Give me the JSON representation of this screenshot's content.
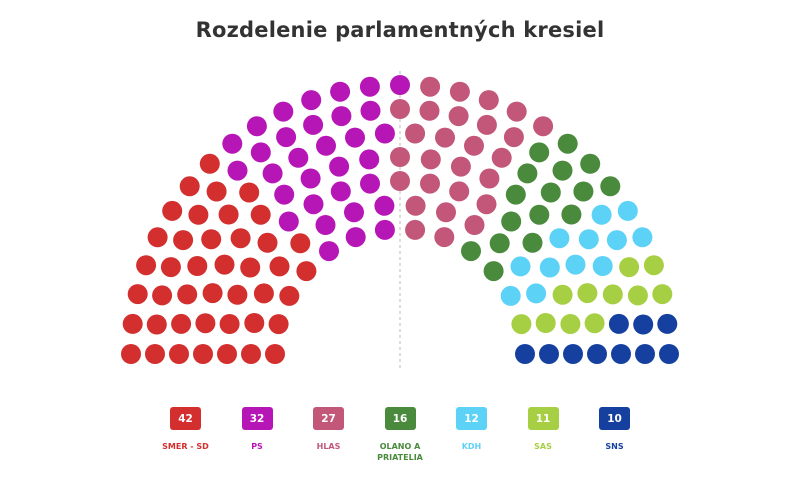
{
  "title": "Rozdelenie parlamentných kresiel",
  "chart_data": {
    "type": "parliament",
    "title": "Rozdelenie parlamentných kresiel",
    "total_seats": 150,
    "parties": [
      {
        "name": "SMER - SD",
        "seats": 42,
        "color": "#d32f2f"
      },
      {
        "name": "PS",
        "seats": 32,
        "color": "#b716b7"
      },
      {
        "name": "HLAS",
        "seats": 27,
        "color": "#c2577a"
      },
      {
        "name": "OLANO A PRIATELIA",
        "seats": 16,
        "color": "#4a8a3c"
      },
      {
        "name": "KDH",
        "seats": 12,
        "color": "#5cd2f7"
      },
      {
        "name": "SAS",
        "seats": 11,
        "color": "#a7cf43"
      },
      {
        "name": "SNS",
        "seats": 10,
        "color": "#1640a0"
      }
    ],
    "majority_line": true
  }
}
